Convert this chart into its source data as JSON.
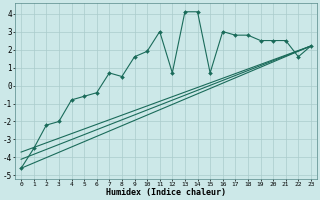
{
  "xlabel": "Humidex (Indice chaleur)",
  "bg_color": "#cce8e8",
  "line_color": "#1a6b5a",
  "grid_color": "#aacccc",
  "xlim": [
    -0.5,
    23.5
  ],
  "ylim": [
    -5.2,
    4.6
  ],
  "yticks": [
    -5,
    -4,
    -3,
    -2,
    -1,
    0,
    1,
    2,
    3,
    4
  ],
  "xticks": [
    0,
    1,
    2,
    3,
    4,
    5,
    6,
    7,
    8,
    9,
    10,
    11,
    12,
    13,
    14,
    15,
    16,
    17,
    18,
    19,
    20,
    21,
    22,
    23
  ],
  "series1_x": [
    0,
    1,
    2,
    3,
    4,
    5,
    6,
    7,
    8,
    9,
    10,
    11,
    12,
    13,
    14,
    15,
    16,
    17,
    18,
    19,
    20,
    21,
    22,
    23
  ],
  "series1_y": [
    -4.6,
    -3.5,
    -2.2,
    -2.0,
    -0.8,
    -0.6,
    -0.4,
    0.7,
    0.5,
    1.6,
    1.9,
    3.0,
    0.7,
    4.1,
    4.1,
    0.7,
    3.0,
    2.8,
    2.8,
    2.5,
    2.5,
    2.5,
    1.6,
    2.2
  ],
  "line2_x": [
    0,
    23
  ],
  "line2_y": [
    -4.6,
    2.2
  ],
  "line3_x": [
    0,
    23
  ],
  "line3_y": [
    -4.1,
    2.2
  ],
  "line4_x": [
    0,
    23
  ],
  "line4_y": [
    -3.7,
    2.2
  ]
}
